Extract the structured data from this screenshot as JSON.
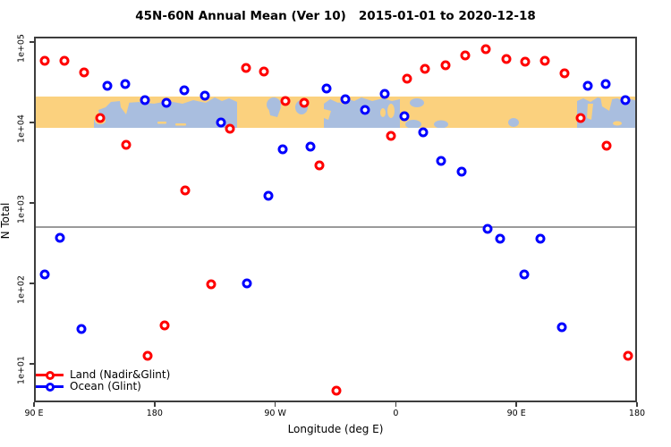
{
  "title": "45N-60N Annual Mean (Ver 10)   2015-01-01 to 2020-12-18",
  "colors": {
    "land_series": "#ff0000",
    "ocean_series": "#0000ff",
    "map_land": "#fbd17e",
    "map_ocean": "#a9bedf",
    "reference_line": "#9a9a9a",
    "axis": "#3d3d3d"
  },
  "chart_data": {
    "type": "scatter",
    "title": "45N-60N Annual Mean (Ver 10)   2015-01-01 to 2020-12-18",
    "xlabel": "Longitude (deg E)",
    "ylabel": "N Total",
    "x_axis": {
      "range_deg_continuous": [
        90,
        540
      ],
      "ticks": [
        {
          "lon": 90,
          "label": "90 E"
        },
        {
          "lon": 180,
          "label": "180"
        },
        {
          "lon": 270,
          "label": "90 W"
        },
        {
          "lon": 360,
          "label": "0"
        },
        {
          "lon": 450,
          "label": "90 E"
        },
        {
          "lon": 540,
          "label": "180"
        }
      ]
    },
    "y_axis": {
      "scale": "log10",
      "ylim_exp": [
        0.52,
        5.07
      ],
      "ticks": [
        {
          "value": 100000,
          "label": "1e+05"
        },
        {
          "value": 10000,
          "label": "1e+04"
        },
        {
          "value": 1000,
          "label": "1e+03"
        },
        {
          "value": 100,
          "label": "1e+02"
        },
        {
          "value": 10,
          "label": "1e+01"
        }
      ]
    },
    "reference_line": {
      "value": 500
    },
    "map_band": {
      "description": "world map strip for 45N-60N",
      "value_top": 21000,
      "value_bottom": 8600
    },
    "legend": {
      "position": "bottom-left"
    },
    "series": [
      {
        "name": "Land (Nadir&Glint)",
        "color": "#ff0000",
        "points": [
          {
            "lon": 98.1,
            "n": 58000
          },
          {
            "lon": 112.7,
            "n": 58000
          },
          {
            "lon": 127.4,
            "n": 42000
          },
          {
            "lon": 139.4,
            "n": 11400
          },
          {
            "lon": 158.8,
            "n": 5270
          },
          {
            "lon": 174.8,
            "n": 12.6
          },
          {
            "lon": 187.5,
            "n": 30
          },
          {
            "lon": 202.8,
            "n": 1430
          },
          {
            "lon": 222.2,
            "n": 97
          },
          {
            "lon": 236.2,
            "n": 8400
          },
          {
            "lon": 248.2,
            "n": 47600
          },
          {
            "lon": 261.6,
            "n": 43000
          },
          {
            "lon": 277.6,
            "n": 18500
          },
          {
            "lon": 291.6,
            "n": 17500
          },
          {
            "lon": 303.0,
            "n": 2930
          },
          {
            "lon": 315.7,
            "n": 4.6
          },
          {
            "lon": 356.4,
            "n": 6800
          },
          {
            "lon": 368.4,
            "n": 35000
          },
          {
            "lon": 381.8,
            "n": 46400
          },
          {
            "lon": 397.2,
            "n": 51400
          },
          {
            "lon": 411.9,
            "n": 68000
          },
          {
            "lon": 427.2,
            "n": 81500
          },
          {
            "lon": 442.6,
            "n": 61500
          },
          {
            "lon": 456.6,
            "n": 57000
          },
          {
            "lon": 471.3,
            "n": 58400
          },
          {
            "lon": 486.0,
            "n": 40800
          },
          {
            "lon": 498.0,
            "n": 11400
          },
          {
            "lon": 517.4,
            "n": 5140
          },
          {
            "lon": 533.4,
            "n": 12.6
          }
        ]
      },
      {
        "name": "Ocean (Glint)",
        "color": "#0000ff",
        "points": [
          {
            "lon": 98.0,
            "n": 129
          },
          {
            "lon": 109.4,
            "n": 370
          },
          {
            "lon": 125.4,
            "n": 27
          },
          {
            "lon": 144.7,
            "n": 28600
          },
          {
            "lon": 158.1,
            "n": 30000
          },
          {
            "lon": 172.8,
            "n": 19000
          },
          {
            "lon": 188.8,
            "n": 17500
          },
          {
            "lon": 202.2,
            "n": 25000
          },
          {
            "lon": 217.5,
            "n": 21500
          },
          {
            "lon": 229.5,
            "n": 10000
          },
          {
            "lon": 248.9,
            "n": 100
          },
          {
            "lon": 264.9,
            "n": 1230
          },
          {
            "lon": 275.6,
            "n": 4640
          },
          {
            "lon": 296.3,
            "n": 5000
          },
          {
            "lon": 308.4,
            "n": 26400
          },
          {
            "lon": 322.4,
            "n": 19400
          },
          {
            "lon": 337.1,
            "n": 14300
          },
          {
            "lon": 351.8,
            "n": 22700
          },
          {
            "lon": 366.4,
            "n": 12000
          },
          {
            "lon": 380.4,
            "n": 7550
          },
          {
            "lon": 393.8,
            "n": 3330
          },
          {
            "lon": 409.2,
            "n": 2450
          },
          {
            "lon": 428.5,
            "n": 476
          },
          {
            "lon": 437.9,
            "n": 360
          },
          {
            "lon": 455.9,
            "n": 129
          },
          {
            "lon": 467.9,
            "n": 360
          },
          {
            "lon": 484.0,
            "n": 28.6
          },
          {
            "lon": 503.3,
            "n": 28600
          },
          {
            "lon": 516.7,
            "n": 30000
          },
          {
            "lon": 531.4,
            "n": 19000
          }
        ]
      }
    ]
  }
}
